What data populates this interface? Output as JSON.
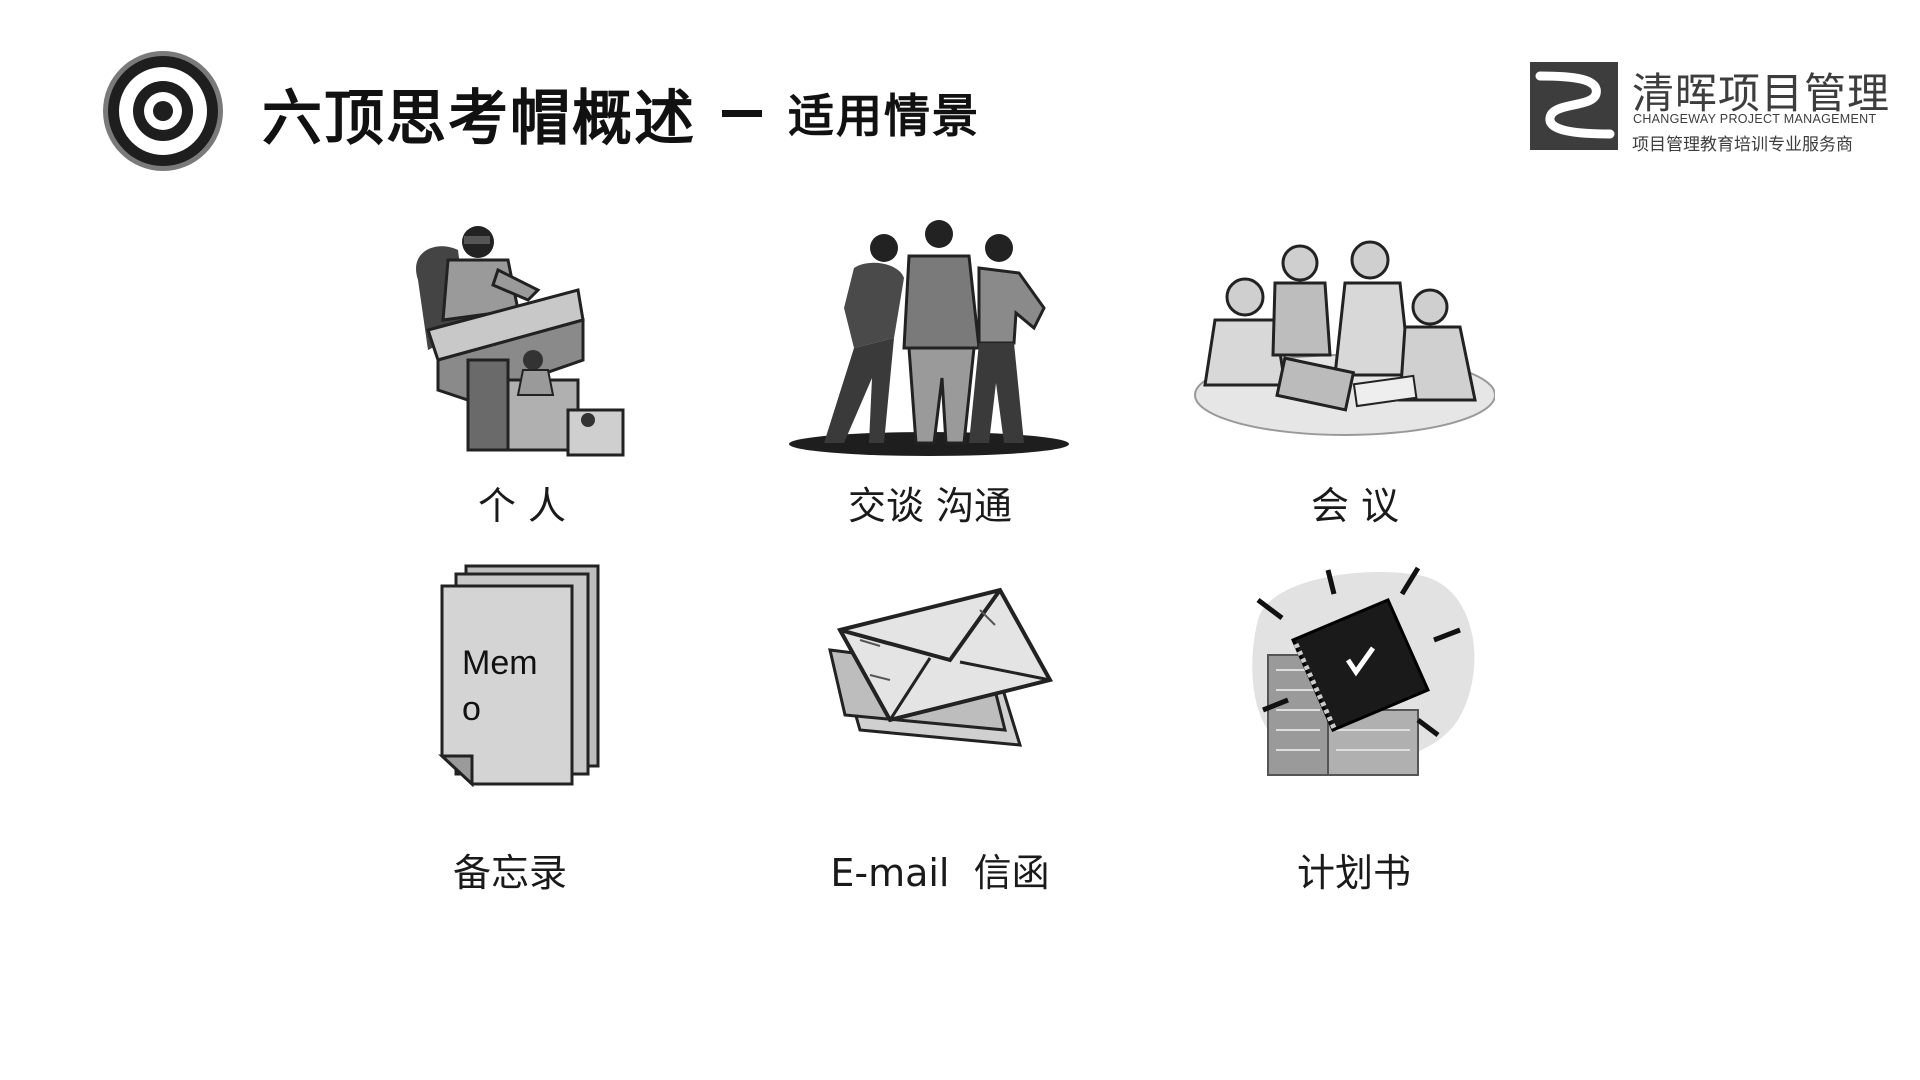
{
  "header": {
    "title": "六顶思考帽概述",
    "subtitle": "适用情景"
  },
  "logo": {
    "name": "清晖项目管理",
    "english": "CHANGEWAY PROJECT MANAGEMENT",
    "tagline": "项目管理教育培训专业服务商"
  },
  "scenarios": [
    {
      "label": "个 人",
      "icon": "person-at-desk-icon"
    },
    {
      "label": "交谈 沟通",
      "icon": "people-conversation-icon"
    },
    {
      "label": "会 议",
      "icon": "meeting-group-icon"
    },
    {
      "label": "备忘录",
      "icon": "memo-icon",
      "memo_text_line1": "Mem",
      "memo_text_line2": "o"
    },
    {
      "label": "E-mail  信函",
      "icon": "envelope-icon"
    },
    {
      "label": "计划书",
      "icon": "plan-book-icon"
    }
  ],
  "colors": {
    "text": "#111111",
    "logo_gray": "#3d3d3d",
    "illustration_gray": "#8c8c8c"
  }
}
